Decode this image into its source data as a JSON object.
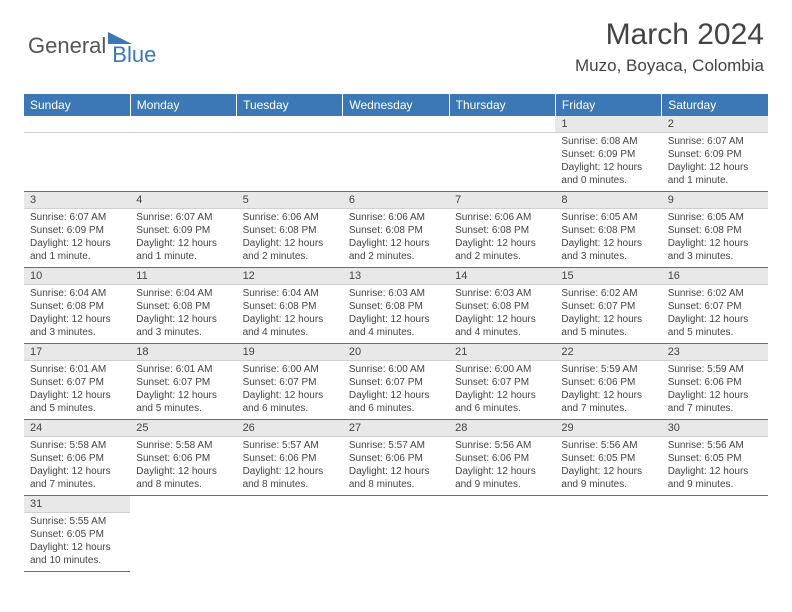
{
  "logo": {
    "text_a": "General",
    "text_b": "Blue"
  },
  "header": {
    "month_title": "March 2024",
    "location": "Muzo, Boyaca, Colombia"
  },
  "colors": {
    "header_bg": "#3b78b5",
    "header_fg": "#ffffff",
    "daynum_bg": "#e8e8e8",
    "row_border": "#3b78b5",
    "text": "#444444"
  },
  "weekdays": [
    "Sunday",
    "Monday",
    "Tuesday",
    "Wednesday",
    "Thursday",
    "Friday",
    "Saturday"
  ],
  "weeks": [
    [
      {
        "n": "",
        "sr": "",
        "ss": "",
        "dl1": "",
        "dl2": "",
        "empty": true
      },
      {
        "n": "",
        "sr": "",
        "ss": "",
        "dl1": "",
        "dl2": "",
        "empty": true
      },
      {
        "n": "",
        "sr": "",
        "ss": "",
        "dl1": "",
        "dl2": "",
        "empty": true
      },
      {
        "n": "",
        "sr": "",
        "ss": "",
        "dl1": "",
        "dl2": "",
        "empty": true
      },
      {
        "n": "",
        "sr": "",
        "ss": "",
        "dl1": "",
        "dl2": "",
        "empty": true
      },
      {
        "n": "1",
        "sr": "Sunrise: 6:08 AM",
        "ss": "Sunset: 6:09 PM",
        "dl1": "Daylight: 12 hours",
        "dl2": "and 0 minutes."
      },
      {
        "n": "2",
        "sr": "Sunrise: 6:07 AM",
        "ss": "Sunset: 6:09 PM",
        "dl1": "Daylight: 12 hours",
        "dl2": "and 1 minute."
      }
    ],
    [
      {
        "n": "3",
        "sr": "Sunrise: 6:07 AM",
        "ss": "Sunset: 6:09 PM",
        "dl1": "Daylight: 12 hours",
        "dl2": "and 1 minute."
      },
      {
        "n": "4",
        "sr": "Sunrise: 6:07 AM",
        "ss": "Sunset: 6:09 PM",
        "dl1": "Daylight: 12 hours",
        "dl2": "and 1 minute."
      },
      {
        "n": "5",
        "sr": "Sunrise: 6:06 AM",
        "ss": "Sunset: 6:08 PM",
        "dl1": "Daylight: 12 hours",
        "dl2": "and 2 minutes."
      },
      {
        "n": "6",
        "sr": "Sunrise: 6:06 AM",
        "ss": "Sunset: 6:08 PM",
        "dl1": "Daylight: 12 hours",
        "dl2": "and 2 minutes."
      },
      {
        "n": "7",
        "sr": "Sunrise: 6:06 AM",
        "ss": "Sunset: 6:08 PM",
        "dl1": "Daylight: 12 hours",
        "dl2": "and 2 minutes."
      },
      {
        "n": "8",
        "sr": "Sunrise: 6:05 AM",
        "ss": "Sunset: 6:08 PM",
        "dl1": "Daylight: 12 hours",
        "dl2": "and 3 minutes."
      },
      {
        "n": "9",
        "sr": "Sunrise: 6:05 AM",
        "ss": "Sunset: 6:08 PM",
        "dl1": "Daylight: 12 hours",
        "dl2": "and 3 minutes."
      }
    ],
    [
      {
        "n": "10",
        "sr": "Sunrise: 6:04 AM",
        "ss": "Sunset: 6:08 PM",
        "dl1": "Daylight: 12 hours",
        "dl2": "and 3 minutes."
      },
      {
        "n": "11",
        "sr": "Sunrise: 6:04 AM",
        "ss": "Sunset: 6:08 PM",
        "dl1": "Daylight: 12 hours",
        "dl2": "and 3 minutes."
      },
      {
        "n": "12",
        "sr": "Sunrise: 6:04 AM",
        "ss": "Sunset: 6:08 PM",
        "dl1": "Daylight: 12 hours",
        "dl2": "and 4 minutes."
      },
      {
        "n": "13",
        "sr": "Sunrise: 6:03 AM",
        "ss": "Sunset: 6:08 PM",
        "dl1": "Daylight: 12 hours",
        "dl2": "and 4 minutes."
      },
      {
        "n": "14",
        "sr": "Sunrise: 6:03 AM",
        "ss": "Sunset: 6:08 PM",
        "dl1": "Daylight: 12 hours",
        "dl2": "and 4 minutes."
      },
      {
        "n": "15",
        "sr": "Sunrise: 6:02 AM",
        "ss": "Sunset: 6:07 PM",
        "dl1": "Daylight: 12 hours",
        "dl2": "and 5 minutes."
      },
      {
        "n": "16",
        "sr": "Sunrise: 6:02 AM",
        "ss": "Sunset: 6:07 PM",
        "dl1": "Daylight: 12 hours",
        "dl2": "and 5 minutes."
      }
    ],
    [
      {
        "n": "17",
        "sr": "Sunrise: 6:01 AM",
        "ss": "Sunset: 6:07 PM",
        "dl1": "Daylight: 12 hours",
        "dl2": "and 5 minutes."
      },
      {
        "n": "18",
        "sr": "Sunrise: 6:01 AM",
        "ss": "Sunset: 6:07 PM",
        "dl1": "Daylight: 12 hours",
        "dl2": "and 5 minutes."
      },
      {
        "n": "19",
        "sr": "Sunrise: 6:00 AM",
        "ss": "Sunset: 6:07 PM",
        "dl1": "Daylight: 12 hours",
        "dl2": "and 6 minutes."
      },
      {
        "n": "20",
        "sr": "Sunrise: 6:00 AM",
        "ss": "Sunset: 6:07 PM",
        "dl1": "Daylight: 12 hours",
        "dl2": "and 6 minutes."
      },
      {
        "n": "21",
        "sr": "Sunrise: 6:00 AM",
        "ss": "Sunset: 6:07 PM",
        "dl1": "Daylight: 12 hours",
        "dl2": "and 6 minutes."
      },
      {
        "n": "22",
        "sr": "Sunrise: 5:59 AM",
        "ss": "Sunset: 6:06 PM",
        "dl1": "Daylight: 12 hours",
        "dl2": "and 7 minutes."
      },
      {
        "n": "23",
        "sr": "Sunrise: 5:59 AM",
        "ss": "Sunset: 6:06 PM",
        "dl1": "Daylight: 12 hours",
        "dl2": "and 7 minutes."
      }
    ],
    [
      {
        "n": "24",
        "sr": "Sunrise: 5:58 AM",
        "ss": "Sunset: 6:06 PM",
        "dl1": "Daylight: 12 hours",
        "dl2": "and 7 minutes."
      },
      {
        "n": "25",
        "sr": "Sunrise: 5:58 AM",
        "ss": "Sunset: 6:06 PM",
        "dl1": "Daylight: 12 hours",
        "dl2": "and 8 minutes."
      },
      {
        "n": "26",
        "sr": "Sunrise: 5:57 AM",
        "ss": "Sunset: 6:06 PM",
        "dl1": "Daylight: 12 hours",
        "dl2": "and 8 minutes."
      },
      {
        "n": "27",
        "sr": "Sunrise: 5:57 AM",
        "ss": "Sunset: 6:06 PM",
        "dl1": "Daylight: 12 hours",
        "dl2": "and 8 minutes."
      },
      {
        "n": "28",
        "sr": "Sunrise: 5:56 AM",
        "ss": "Sunset: 6:06 PM",
        "dl1": "Daylight: 12 hours",
        "dl2": "and 9 minutes."
      },
      {
        "n": "29",
        "sr": "Sunrise: 5:56 AM",
        "ss": "Sunset: 6:05 PM",
        "dl1": "Daylight: 12 hours",
        "dl2": "and 9 minutes."
      },
      {
        "n": "30",
        "sr": "Sunrise: 5:56 AM",
        "ss": "Sunset: 6:05 PM",
        "dl1": "Daylight: 12 hours",
        "dl2": "and 9 minutes."
      }
    ],
    [
      {
        "n": "31",
        "sr": "Sunrise: 5:55 AM",
        "ss": "Sunset: 6:05 PM",
        "dl1": "Daylight: 12 hours",
        "dl2": "and 10 minutes."
      },
      {
        "n": "",
        "sr": "",
        "ss": "",
        "dl1": "",
        "dl2": "",
        "blank": true
      },
      {
        "n": "",
        "sr": "",
        "ss": "",
        "dl1": "",
        "dl2": "",
        "blank": true
      },
      {
        "n": "",
        "sr": "",
        "ss": "",
        "dl1": "",
        "dl2": "",
        "blank": true
      },
      {
        "n": "",
        "sr": "",
        "ss": "",
        "dl1": "",
        "dl2": "",
        "blank": true
      },
      {
        "n": "",
        "sr": "",
        "ss": "",
        "dl1": "",
        "dl2": "",
        "blank": true
      },
      {
        "n": "",
        "sr": "",
        "ss": "",
        "dl1": "",
        "dl2": "",
        "blank": true
      }
    ]
  ]
}
